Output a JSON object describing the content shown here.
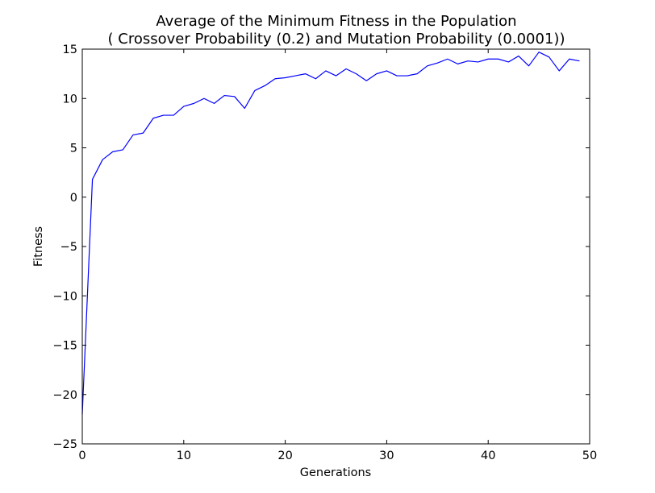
{
  "chart_data": {
    "type": "line",
    "title": "Average of the Minimum Fitness in the Population",
    "subtitle": "( Crossover Probability (0.2) and Mutation Probability (0.0001))",
    "xlabel": "Generations",
    "ylabel": "Fitness",
    "xlim": [
      0,
      50
    ],
    "ylim": [
      -25,
      15
    ],
    "xticks": [
      0,
      10,
      20,
      30,
      40,
      50
    ],
    "yticks": [
      -25,
      -20,
      -15,
      -10,
      -5,
      0,
      5,
      10,
      15
    ],
    "grid": false,
    "series": [
      {
        "color": "#0000ff",
        "x": [
          0,
          1,
          2,
          3,
          4,
          5,
          6,
          7,
          8,
          9,
          10,
          11,
          12,
          13,
          14,
          15,
          16,
          17,
          18,
          19,
          20,
          21,
          22,
          23,
          24,
          25,
          26,
          27,
          28,
          29,
          30,
          31,
          32,
          33,
          34,
          35,
          36,
          37,
          38,
          39,
          40,
          41,
          42,
          43,
          44,
          45,
          46,
          47,
          48,
          49
        ],
        "y": [
          -22.0,
          1.8,
          3.8,
          4.6,
          4.8,
          6.3,
          6.5,
          8.0,
          8.3,
          8.3,
          9.2,
          9.5,
          10.0,
          9.5,
          10.3,
          10.2,
          9.0,
          10.8,
          11.3,
          12.0,
          12.1,
          12.3,
          12.5,
          12.0,
          12.8,
          12.3,
          13.0,
          12.5,
          11.8,
          12.5,
          12.8,
          12.3,
          12.3,
          12.5,
          13.3,
          13.6,
          14.0,
          13.5,
          13.8,
          13.7,
          14.0,
          14.0,
          13.7,
          14.3,
          13.3,
          14.7,
          14.2,
          12.8,
          14.0,
          13.8
        ]
      }
    ]
  }
}
